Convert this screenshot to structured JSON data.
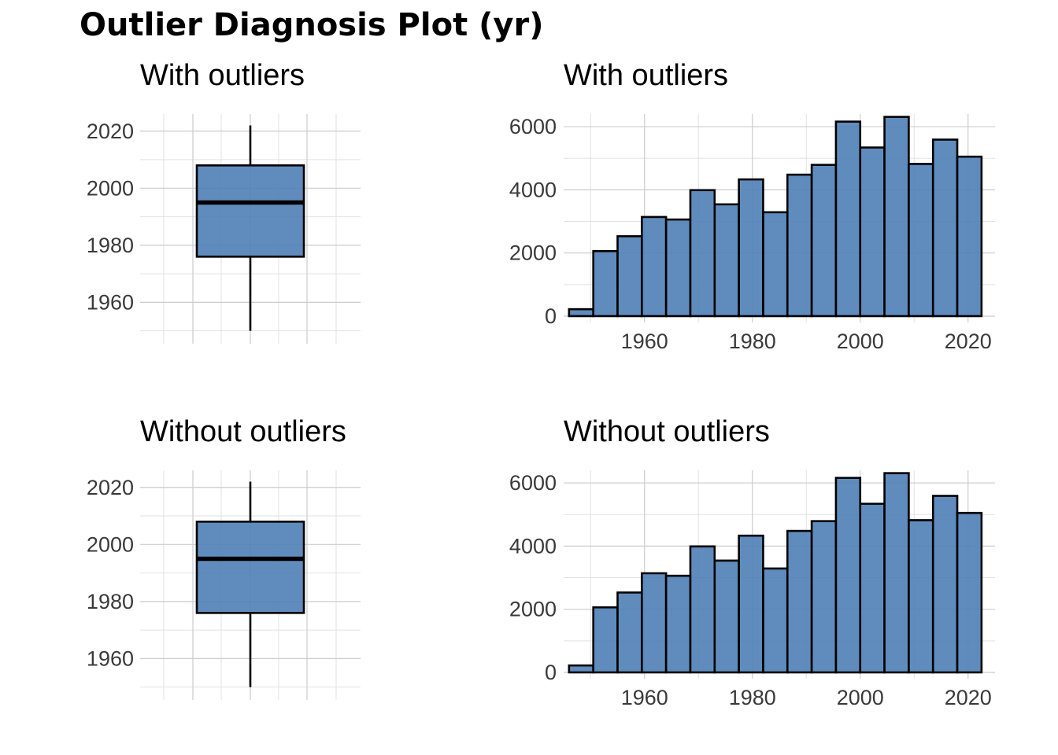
{
  "title": "Outlier Diagnosis Plot (yr)",
  "colors": {
    "fill": "#4f7fb6",
    "outline": "#000000",
    "grid": "#cccccc",
    "text": "#3a3a3a"
  },
  "chart_data": [
    {
      "type": "boxplot",
      "title": "With outliers",
      "variable": "yr",
      "ylim": [
        1950,
        2022
      ],
      "yticks": [
        1960,
        1980,
        2000,
        2020
      ],
      "whisker_low": 1950,
      "q1": 1976,
      "median": 1995,
      "q3": 2008,
      "whisker_high": 2022
    },
    {
      "type": "bar",
      "title": "With outliers",
      "variable": "yr",
      "xlim": [
        1945,
        2025
      ],
      "ylim": [
        0,
        6400
      ],
      "xticks": [
        1960,
        1980,
        2000,
        2020
      ],
      "yticks": [
        0,
        2000,
        4000,
        6000
      ],
      "bin_starts": [
        1946,
        1950.5,
        1955,
        1959.5,
        1964,
        1968.5,
        1973,
        1977.5,
        1982,
        1986.5,
        1991,
        1995.5,
        2000,
        2004.5,
        2009,
        2013.5,
        2018
      ],
      "bin_width": 4.5,
      "values": [
        220,
        2060,
        2530,
        3140,
        3060,
        3990,
        3540,
        4330,
        3290,
        4480,
        4790,
        6160,
        5340,
        6310,
        4820,
        5590,
        5050
      ]
    },
    {
      "type": "boxplot",
      "title": "Without outliers",
      "variable": "yr",
      "ylim": [
        1950,
        2022
      ],
      "yticks": [
        1960,
        1980,
        2000,
        2020
      ],
      "whisker_low": 1950,
      "q1": 1976,
      "median": 1995,
      "q3": 2008,
      "whisker_high": 2022
    },
    {
      "type": "bar",
      "title": "Without outliers",
      "variable": "yr",
      "xlim": [
        1945,
        2025
      ],
      "ylim": [
        0,
        6400
      ],
      "xticks": [
        1960,
        1980,
        2000,
        2020
      ],
      "yticks": [
        0,
        2000,
        4000,
        6000
      ],
      "bin_starts": [
        1946,
        1950.5,
        1955,
        1959.5,
        1964,
        1968.5,
        1973,
        1977.5,
        1982,
        1986.5,
        1991,
        1995.5,
        2000,
        2004.5,
        2009,
        2013.5,
        2018
      ],
      "bin_width": 4.5,
      "values": [
        220,
        2060,
        2530,
        3140,
        3060,
        3990,
        3540,
        4330,
        3290,
        4480,
        4790,
        6160,
        5340,
        6310,
        4820,
        5590,
        5050
      ]
    }
  ]
}
